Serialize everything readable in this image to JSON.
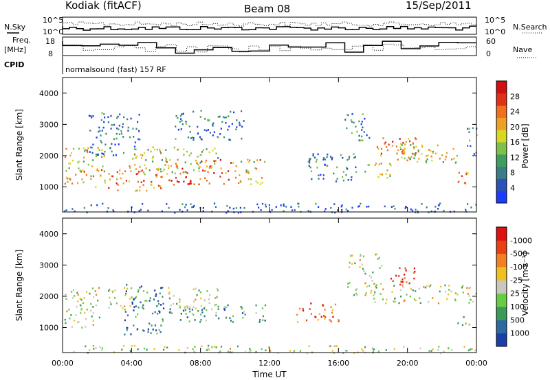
{
  "header": {
    "title": "Kodiak (fitACF)",
    "beam": "Beam 08",
    "date": "15/Sep/2011"
  },
  "status_panels": {
    "nsky_label": "N.Sky",
    "nsearch_label": "N.Search",
    "noise_ticks": [
      "10^5",
      "10^0"
    ],
    "freq_label": "Freq.",
    "freq_unit": "[MHz]",
    "freq_ticks": [
      "18",
      "8"
    ],
    "nave_label": "Nave",
    "nave_ticks": [
      "60",
      "0"
    ],
    "cpid_label": "CPID",
    "cpid_text": "normalsound (fast) 157 RF"
  },
  "chart_data": [
    {
      "type": "heatmap",
      "title": "",
      "ylabel": "Slant Range [km]",
      "xlabel": "",
      "x_ticks": [
        "00:00",
        "04:00",
        "08:00",
        "12:00",
        "16:00",
        "20:00",
        "00:00"
      ],
      "y_ticks": [
        "1000",
        "2000",
        "3000",
        "4000"
      ],
      "ylim": [
        200,
        4500
      ],
      "xlim_hours": [
        0,
        24
      ],
      "colorbar": {
        "label": "Power [dB]",
        "ticks": [
          "4",
          "8",
          "12",
          "16",
          "20",
          "24",
          "28"
        ],
        "colors": [
          "#1a3cff",
          "#2a52b8",
          "#3b7d86",
          "#3f9e5f",
          "#7fc04a",
          "#d8d820",
          "#f0a020",
          "#f07020",
          "#e03018",
          "#d01010"
        ]
      },
      "scatter_regions": [
        {
          "t0": 0.1,
          "t1": 2.4,
          "r0": 1000,
          "r1": 2300,
          "v": 0.6
        },
        {
          "t0": 2.4,
          "t1": 5.8,
          "r0": 900,
          "r1": 1600,
          "v": 0.7
        },
        {
          "t0": 1.5,
          "t1": 4.5,
          "r0": 2000,
          "r1": 3400,
          "v": 0.2
        },
        {
          "t0": 3.8,
          "t1": 9.0,
          "r0": 1500,
          "r1": 2300,
          "v": 0.5
        },
        {
          "t0": 6.0,
          "t1": 9.8,
          "r0": 1100,
          "r1": 1900,
          "v": 0.8
        },
        {
          "t0": 9.8,
          "t1": 11.8,
          "r0": 1100,
          "r1": 1900,
          "v": 0.6
        },
        {
          "t0": 6.5,
          "t1": 10.5,
          "r0": 2500,
          "r1": 3500,
          "v": 0.2
        },
        {
          "t0": 14.0,
          "t1": 17.0,
          "r0": 1200,
          "r1": 2100,
          "v": 0.25
        },
        {
          "t0": 16.3,
          "t1": 17.8,
          "r0": 2500,
          "r1": 3400,
          "v": 0.25
        },
        {
          "t0": 17.5,
          "t1": 19.0,
          "r0": 1300,
          "r1": 1800,
          "v": 0.55
        },
        {
          "t0": 18.2,
          "t1": 21.5,
          "r0": 2000,
          "r1": 2600,
          "v": 0.75
        },
        {
          "t0": 19.0,
          "t1": 23.0,
          "r0": 1800,
          "r1": 2400,
          "v": 0.55
        },
        {
          "t0": 22.8,
          "t1": 23.6,
          "r0": 1000,
          "r1": 1500,
          "v": 0.7
        },
        {
          "t0": 23.4,
          "t1": 24.0,
          "r0": 2000,
          "r1": 3000,
          "v": 0.3
        },
        {
          "t0": 0.0,
          "t1": 24.0,
          "r0": 200,
          "r1": 500,
          "v": 0.15
        }
      ]
    },
    {
      "type": "heatmap",
      "title": "",
      "ylabel": "Slant Range [km]",
      "xlabel": "Time UT",
      "x_ticks": [
        "00:00",
        "04:00",
        "08:00",
        "12:00",
        "16:00",
        "20:00",
        "00:00"
      ],
      "y_ticks": [
        "1000",
        "2000",
        "3000",
        "4000"
      ],
      "ylim": [
        200,
        4500
      ],
      "xlim_hours": [
        0,
        24
      ],
      "colorbar": {
        "label": "Velocity [m s⁻¹]",
        "ticks": [
          "1000",
          "500",
          "100",
          "25",
          "-25",
          "-100",
          "-500",
          "-1000"
        ],
        "colors": [
          "#1b3fa8",
          "#2a6aa0",
          "#3a9a5a",
          "#66cc44",
          "#c8c8c0",
          "#f0c020",
          "#f08020",
          "#e84010",
          "#e01010"
        ]
      },
      "scatter_regions": [
        {
          "t0": 0.1,
          "t1": 4.0,
          "r0": 1600,
          "r1": 2300,
          "v": 0.5
        },
        {
          "t0": 0.1,
          "t1": 2.4,
          "r0": 1000,
          "r1": 1600,
          "v": 0.5
        },
        {
          "t0": 3.5,
          "t1": 6.0,
          "r0": 800,
          "r1": 2400,
          "v": 0.2
        },
        {
          "t0": 6.0,
          "t1": 9.0,
          "r0": 1600,
          "r1": 2300,
          "v": 0.5
        },
        {
          "t0": 6.0,
          "t1": 11.8,
          "r0": 1200,
          "r1": 1800,
          "v": 0.3
        },
        {
          "t0": 13.5,
          "t1": 16.0,
          "r0": 1200,
          "r1": 1800,
          "v": 0.8
        },
        {
          "t0": 16.5,
          "t1": 18.5,
          "r0": 2000,
          "r1": 3400,
          "v": 0.5
        },
        {
          "t0": 19.0,
          "t1": 20.5,
          "r0": 2400,
          "r1": 3000,
          "v": 0.9
        },
        {
          "t0": 18.0,
          "t1": 24.0,
          "r0": 1800,
          "r1": 2400,
          "v": 0.5
        },
        {
          "t0": 22.8,
          "t1": 23.6,
          "r0": 1000,
          "r1": 1500,
          "v": 0.5
        },
        {
          "t0": 0.0,
          "t1": 24.0,
          "r0": 200,
          "r1": 450,
          "v": 0.45
        }
      ]
    }
  ]
}
